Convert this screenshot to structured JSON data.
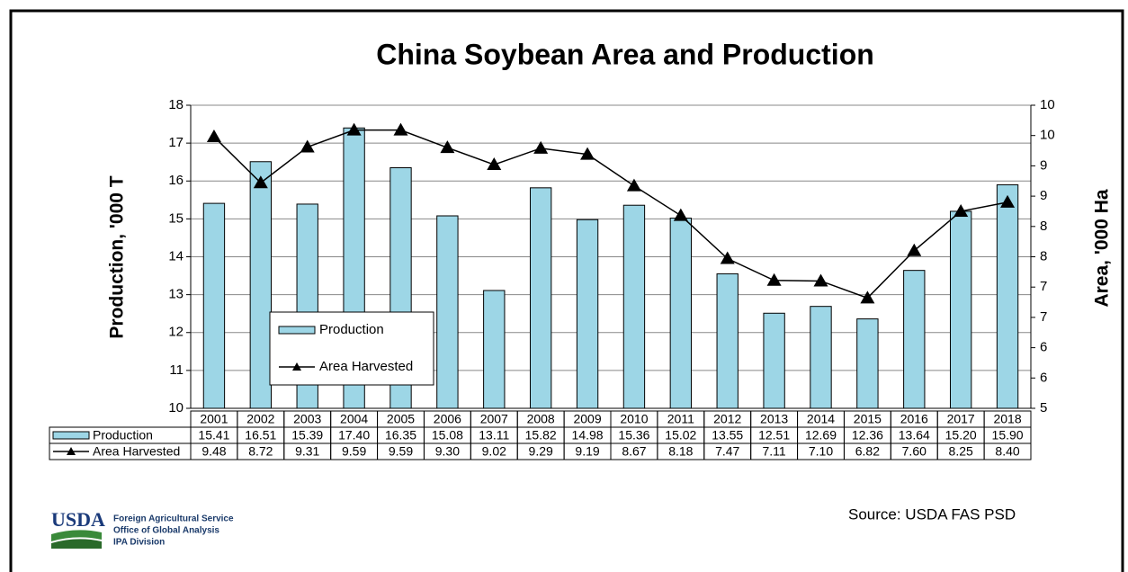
{
  "chart_data": {
    "type": "bar",
    "title": "China Soybean Area and Production",
    "y_label": "Production, '000 T",
    "y2_label": "Area, '000 Ha",
    "categories": [
      "2001",
      "2002",
      "2003",
      "2004",
      "2005",
      "2006",
      "2007",
      "2008",
      "2009",
      "2010",
      "2011",
      "2012",
      "2013",
      "2014",
      "2015",
      "2016",
      "2017",
      "2018"
    ],
    "series": [
      {
        "name": "Production",
        "type": "bar",
        "color": "#9dd6e6",
        "values": [
          15.41,
          16.51,
          15.39,
          17.4,
          16.35,
          15.08,
          13.11,
          15.82,
          14.98,
          15.36,
          15.02,
          13.55,
          12.51,
          12.69,
          12.36,
          13.64,
          15.2,
          15.9
        ],
        "value_labels": [
          "15.41",
          "16.51",
          "15.39",
          "17.40",
          "16.35",
          "15.08",
          "13.11",
          "15.82",
          "14.98",
          "15.36",
          "15.02",
          "13.55",
          "12.51",
          "12.69",
          "12.36",
          "13.64",
          "15.20",
          "15.90"
        ]
      },
      {
        "name": "Area Harvested",
        "type": "line",
        "axis": "y2",
        "color": "#000000",
        "values": [
          9.48,
          8.72,
          9.31,
          9.59,
          9.59,
          9.3,
          9.02,
          9.29,
          9.19,
          8.67,
          8.18,
          7.47,
          7.11,
          7.1,
          6.82,
          7.6,
          8.25,
          8.4
        ],
        "value_labels": [
          "9.48",
          "8.72",
          "9.31",
          "9.59",
          "9.59",
          "9.30",
          "9.02",
          "9.29",
          "9.19",
          "8.67",
          "8.18",
          "7.47",
          "7.11",
          "7.10",
          "6.82",
          "7.60",
          "8.25",
          "8.40"
        ]
      }
    ],
    "ylim": [
      10,
      18
    ],
    "yticks": [
      10,
      11,
      12,
      13,
      14,
      15,
      16,
      17,
      18
    ],
    "y2lim": [
      5,
      10
    ],
    "y2ticks": [
      {
        "value": 5,
        "label": "5"
      },
      {
        "value": 5.5,
        "label": "6"
      },
      {
        "value": 6,
        "label": "6"
      },
      {
        "value": 6.5,
        "label": "7"
      },
      {
        "value": 7,
        "label": "7"
      },
      {
        "value": 7.5,
        "label": "8"
      },
      {
        "value": 8,
        "label": "8"
      },
      {
        "value": 8.5,
        "label": "9"
      },
      {
        "value": 9,
        "label": "9"
      },
      {
        "value": 9.5,
        "label": "10"
      },
      {
        "value": 10,
        "label": "10"
      }
    ],
    "grid": true,
    "legend_position": "lower left",
    "source": "Source: USDA FAS PSD",
    "logo": "USDA",
    "agency": [
      "Foreign Agricultural Service",
      "Office of Global Analysis",
      "IPA Division"
    ]
  }
}
